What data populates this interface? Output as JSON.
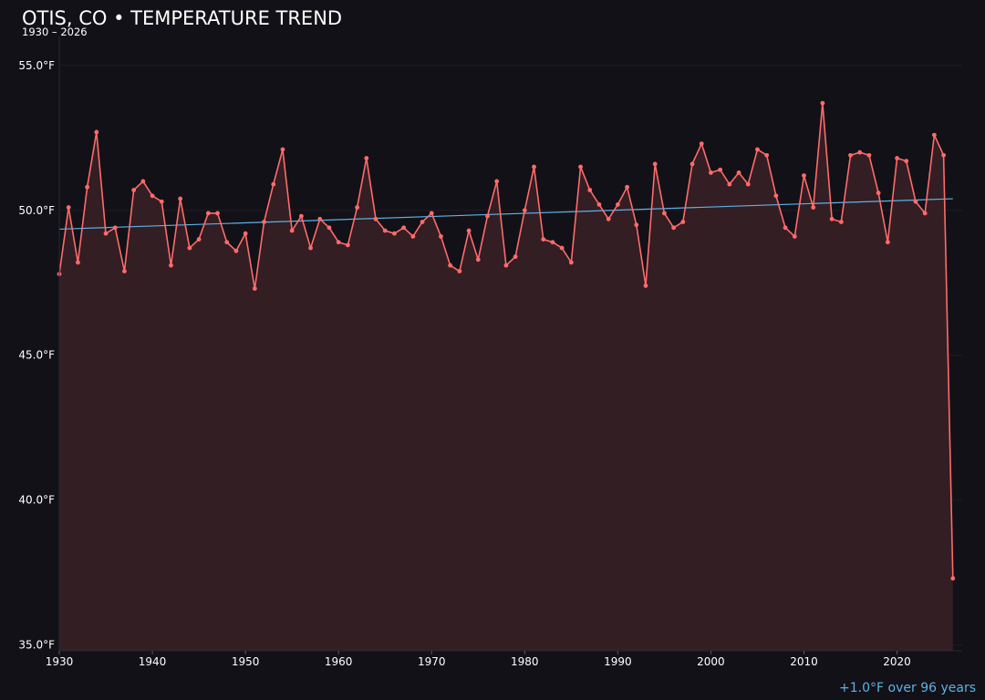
{
  "header": {
    "title": "OTIS, CO • TEMPERATURE TREND",
    "subtitle": "1930 – 2026"
  },
  "footnote": "+1.0°F over 96 years",
  "colors": {
    "background": "#121117",
    "series_line": "#ff6b6b",
    "series_fill": "#331e24",
    "trend_line": "#5bb3e6",
    "grid": "#1f1d24",
    "tick_label": "#ffffff",
    "footnote": "#5bb3e6"
  },
  "chart_data": {
    "type": "line",
    "title": "OTIS, CO • TEMPERATURE TREND",
    "subtitle": "1930 – 2026",
    "xlabel": "",
    "ylabel": "",
    "xlim": [
      1930,
      2027
    ],
    "ylim": [
      34.8,
      56.0
    ],
    "grid": true,
    "legend": "none",
    "area_fill": true,
    "x_ticks": [
      1930,
      1940,
      1950,
      1960,
      1970,
      1980,
      1990,
      2000,
      2010,
      2020
    ],
    "x_tick_labels": [
      "1930",
      "1940",
      "1950",
      "1960",
      "1970",
      "1980",
      "1990",
      "2000",
      "2010",
      "2020"
    ],
    "y_ticks": [
      35,
      40,
      45,
      50,
      55
    ],
    "y_tick_labels": [
      "35.0°F",
      "40.0°F",
      "45.0°F",
      "50.0°F",
      "55.0°F"
    ],
    "series": [
      {
        "x": [
          1930,
          1931,
          1932,
          1933,
          1934,
          1935,
          1936,
          1937,
          1938,
          1939,
          1940,
          1941,
          1942,
          1943,
          1944,
          1945,
          1946,
          1947,
          1948,
          1949,
          1950,
          1951,
          1952,
          1953,
          1954,
          1955,
          1956,
          1957,
          1958,
          1959,
          1960,
          1961,
          1962,
          1963,
          1964,
          1965,
          1966,
          1967,
          1968,
          1969,
          1970,
          1971,
          1972,
          1973,
          1974,
          1975,
          1976,
          1977,
          1978,
          1979,
          1980,
          1981,
          1982,
          1983,
          1984,
          1985,
          1986,
          1987,
          1988,
          1989,
          1990,
          1991,
          1992,
          1993,
          1994,
          1995,
          1996,
          1997,
          1998,
          1999,
          2000,
          2001,
          2002,
          2003,
          2004,
          2005,
          2006,
          2007,
          2008,
          2009,
          2010,
          2011,
          2012,
          2013,
          2014,
          2015,
          2016,
          2017,
          2018,
          2019,
          2020,
          2021,
          2022,
          2023,
          2024,
          2025,
          2026
        ],
        "values": [
          47.8,
          50.1,
          48.2,
          50.8,
          52.7,
          49.2,
          49.4,
          47.9,
          50.7,
          51.0,
          50.5,
          50.3,
          48.1,
          50.4,
          48.7,
          49.0,
          49.9,
          49.9,
          48.9,
          48.6,
          49.2,
          47.3,
          49.6,
          50.9,
          52.1,
          49.3,
          49.8,
          48.7,
          49.7,
          49.4,
          48.9,
          48.8,
          50.1,
          51.8,
          49.7,
          49.3,
          49.2,
          49.4,
          49.1,
          49.6,
          49.9,
          49.1,
          48.1,
          47.9,
          49.3,
          48.3,
          49.8,
          51.0,
          48.1,
          48.4,
          50.0,
          51.5,
          49.0,
          48.9,
          48.7,
          48.2,
          51.5,
          50.7,
          50.2,
          49.7,
          50.2,
          50.8,
          49.5,
          47.4,
          51.6,
          49.9,
          49.4,
          49.6,
          51.6,
          52.3,
          51.3,
          51.4,
          50.9,
          51.3,
          50.9,
          52.1,
          51.9,
          50.5,
          49.4,
          49.1,
          51.2,
          50.1,
          53.7,
          49.7,
          49.6,
          51.9,
          52.0,
          51.9,
          50.6,
          48.9,
          51.8,
          51.7,
          50.3,
          49.9,
          52.6,
          51.9,
          37.3
        ]
      }
    ],
    "trend": {
      "x": [
        1930,
        2026
      ],
      "values": [
        49.35,
        50.4
      ]
    }
  }
}
